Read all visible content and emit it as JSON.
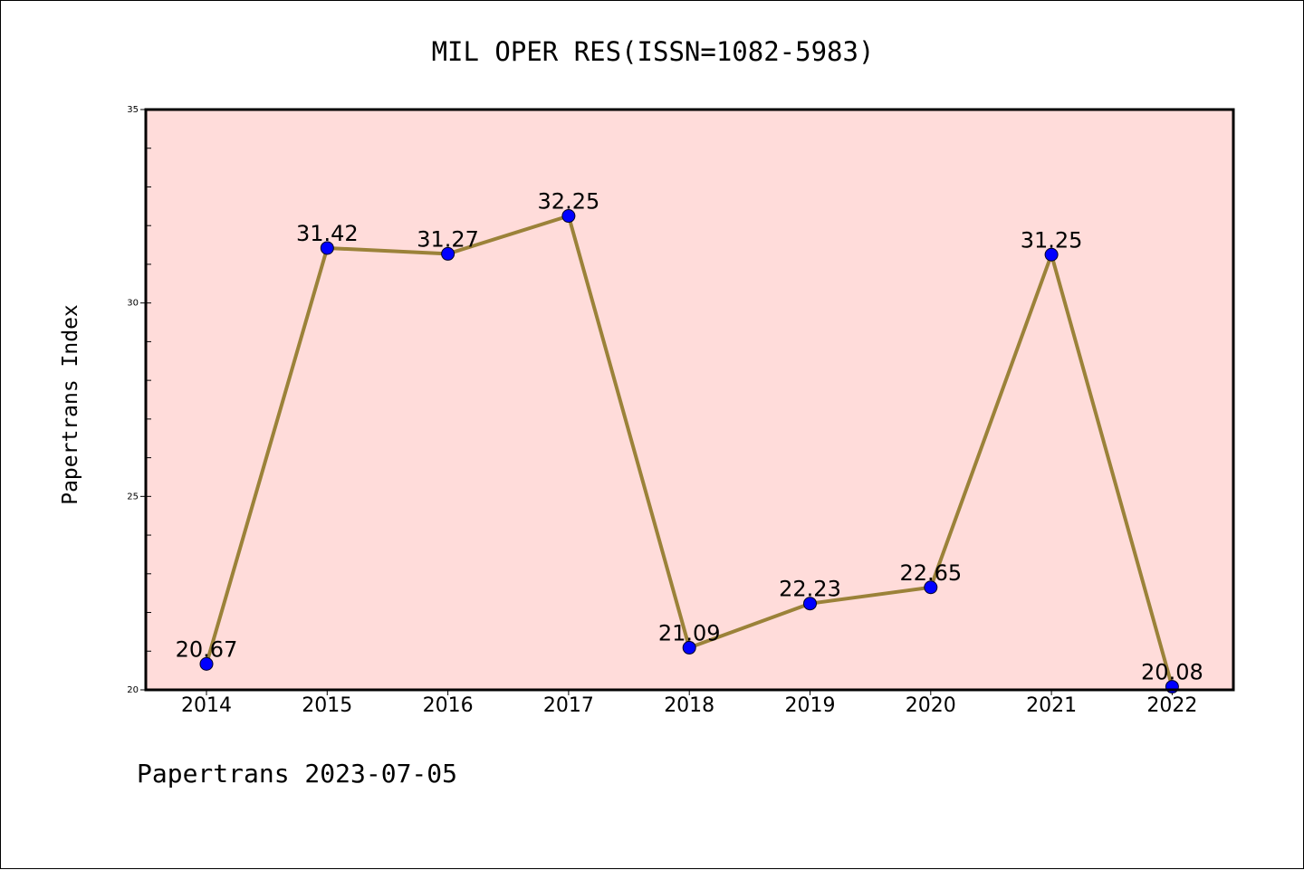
{
  "chart_data": {
    "type": "line",
    "title": "MIL OPER RES(ISSN=1082-5983)",
    "ylabel": "Papertrans Index",
    "xlabel": "",
    "footer": "Papertrans 2023-07-05",
    "x": [
      "2014",
      "2015",
      "2016",
      "2017",
      "2018",
      "2019",
      "2020",
      "2021",
      "2022"
    ],
    "series": [
      {
        "values": [
          20.67,
          31.42,
          31.27,
          32.25,
          21.09,
          22.23,
          22.65,
          31.25,
          20.08
        ],
        "labels": [
          "20.67",
          "31.42",
          "31.27",
          "32.25",
          "21.09",
          "22.23",
          "22.65",
          "31.25",
          "20.08"
        ]
      }
    ],
    "ylim": [
      20,
      35
    ],
    "yticks": [
      "20",
      "25",
      "30",
      "35"
    ],
    "grid": false,
    "colors": {
      "plot_background": "#FFDCDA",
      "line": "#9B8239",
      "marker": "#0000FF"
    }
  }
}
